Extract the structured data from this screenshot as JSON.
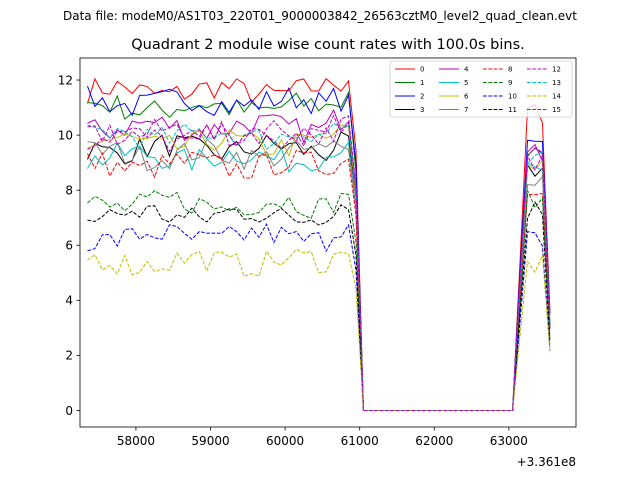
{
  "suptitle": "Data file: modeM0/AS1T03_220T01_9000003842_26563cztM0_level2_quad_clean.evt",
  "chart_data": {
    "type": "line",
    "title": "Quadrant 2 module wise count rates with 100.0s bins.",
    "xlabel": "",
    "ylabel": "",
    "x_offset_label": "+3.361e8",
    "xlim": [
      57250,
      63900
    ],
    "ylim": [
      -0.6,
      12.8
    ],
    "x_ticks": [
      58000,
      59000,
      60000,
      61000,
      62000,
      63000
    ],
    "y_ticks": [
      0,
      2,
      4,
      6,
      8,
      10,
      12
    ],
    "grid": false,
    "legend_position": "top-right",
    "x_segments": {
      "active1": [
        57350,
        60950
      ],
      "gap": [
        61050,
        63050
      ],
      "active2": [
        63150,
        63550
      ],
      "step": 100
    },
    "series": [
      {
        "name": "0",
        "color": "#ff0000",
        "dash": false,
        "level": 11.6,
        "end": 10.8
      },
      {
        "name": "1",
        "color": "#008000",
        "dash": false,
        "level": 11.0,
        "end": 9.6
      },
      {
        "name": "2",
        "color": "#0000ff",
        "dash": false,
        "level": 11.2,
        "end": 10.0
      },
      {
        "name": "3",
        "color": "#000000",
        "dash": false,
        "level": 9.5,
        "end": 8.8
      },
      {
        "name": "4",
        "color": "#bf00bf",
        "dash": false,
        "level": 10.3,
        "end": 9.3
      },
      {
        "name": "5",
        "color": "#00bfbf",
        "dash": false,
        "level": 9.2,
        "end": 8.6
      },
      {
        "name": "6",
        "color": "#bfbf00",
        "dash": false,
        "level": 9.7,
        "end": 9.0
      },
      {
        "name": "7",
        "color": "#808080",
        "dash": false,
        "level": 9.3,
        "end": 8.4
      },
      {
        "name": "8",
        "color": "#ff0000",
        "dash": true,
        "level": 8.9,
        "end": 8.2
      },
      {
        "name": "9",
        "color": "#008000",
        "dash": true,
        "level": 7.5,
        "end": 7.6
      },
      {
        "name": "10",
        "color": "#0000ff",
        "dash": true,
        "level": 6.3,
        "end": 6.2
      },
      {
        "name": "11",
        "color": "#000000",
        "dash": true,
        "level": 7.1,
        "end": 7.3
      },
      {
        "name": "12",
        "color": "#bf00bf",
        "dash": true,
        "level": 9.9,
        "end": 9.1
      },
      {
        "name": "13",
        "color": "#00bfbf",
        "dash": true,
        "level": 10.0,
        "end": 9.0
      },
      {
        "name": "14",
        "color": "#bfbf00",
        "dash": true,
        "level": 5.4,
        "end": 5.3
      },
      {
        "name": "15",
        "color": "#bf00bf",
        "dash": true,
        "level": 10.1,
        "end": 9.4
      }
    ]
  }
}
